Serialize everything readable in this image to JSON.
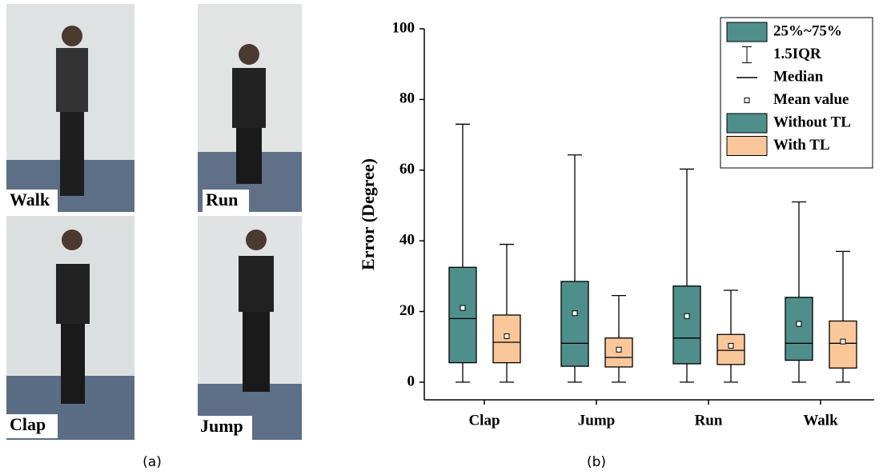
{
  "photo_panel": {
    "labels": [
      "Walk",
      "Run",
      "Clap",
      "Jump"
    ],
    "caption": "(a)"
  },
  "chart_data": {
    "type": "box",
    "caption": "(b)",
    "y_label": "Error (Degree)",
    "categories": [
      "Clap",
      "Jump",
      "Run",
      "Walk"
    ],
    "ylim": [
      -5,
      100
    ],
    "yticks": [
      0,
      20,
      40,
      60,
      80,
      100
    ],
    "legend_keys": [
      "25%~75%",
      "1.5IQR",
      "Median",
      "Mean value"
    ],
    "legend_position": "upper right",
    "series": [
      {
        "name": "Without TL",
        "color": "#4f8f8b",
        "min": [
          0,
          0,
          0,
          0
        ],
        "q1": [
          5.5,
          4.5,
          5.2,
          6.2
        ],
        "median": [
          18,
          11,
          12.5,
          11
        ],
        "q3": [
          32.5,
          28.5,
          27.2,
          24
        ],
        "max": [
          73,
          64.3,
          60.3,
          51
        ],
        "mean": [
          21,
          19.5,
          18.7,
          16.5
        ]
      },
      {
        "name": "With TL",
        "color": "#f9c79a",
        "min": [
          0,
          0,
          0,
          0
        ],
        "q1": [
          5.5,
          4.3,
          5,
          4
        ],
        "median": [
          11.3,
          7,
          9,
          11
        ],
        "q3": [
          19,
          12.5,
          13.5,
          17.3
        ],
        "max": [
          39,
          24.5,
          26,
          37
        ],
        "mean": [
          13,
          9.2,
          10.3,
          11.5
        ]
      }
    ]
  }
}
